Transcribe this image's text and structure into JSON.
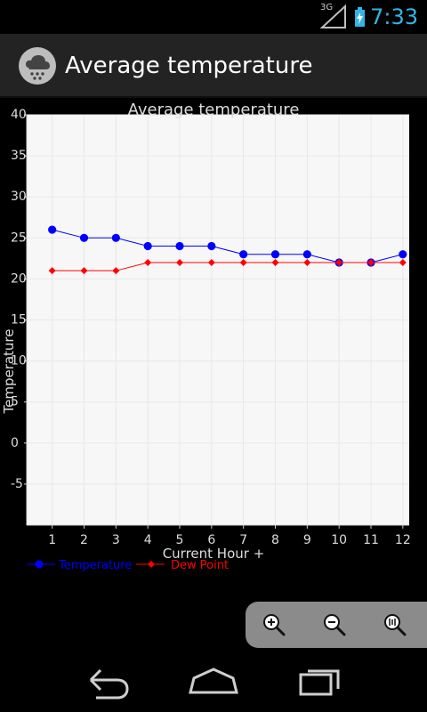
{
  "status_bar": {
    "network": "3G",
    "time": "7:33",
    "accent": "#33b5e5"
  },
  "header": {
    "title": "Average temperature",
    "icon": "weather-cloud-icon",
    "background": "#232323"
  },
  "chart_data": {
    "type": "line",
    "title": "Average temperature",
    "xlabel": "Current Hour +",
    "ylabel": "Temperature",
    "x": [
      1,
      2,
      3,
      4,
      5,
      6,
      7,
      8,
      9,
      10,
      11,
      12
    ],
    "x_tick_labels": [
      "1",
      "2",
      "3",
      "4",
      "5",
      "6",
      "7",
      "8",
      "9",
      "10",
      "11",
      "12"
    ],
    "xlim": [
      0.2,
      12.2
    ],
    "ylim": [
      -10,
      40
    ],
    "y_ticks": [
      40,
      35,
      30,
      25,
      20,
      15,
      10,
      5,
      0,
      -5
    ],
    "y_tick_labels": [
      "40",
      "35",
      "30",
      "25",
      "20",
      "15",
      "10",
      "5",
      "0",
      "-5"
    ],
    "grid": true,
    "legend_position": "bottom-left",
    "series": [
      {
        "name": "Temperature",
        "color": "#0000ff",
        "marker": "circle",
        "values": [
          26,
          25,
          25,
          24,
          24,
          24,
          23,
          23,
          23,
          22,
          22,
          23
        ]
      },
      {
        "name": "Dew Point",
        "color": "#ff0000",
        "marker": "diamond",
        "values": [
          21,
          21,
          21,
          22,
          22,
          22,
          22,
          22,
          22,
          22,
          22,
          22
        ]
      }
    ]
  },
  "zoom_controls": {
    "zoom_in_icon": "zoom-in-icon",
    "zoom_out_icon": "zoom-out-icon",
    "reset_zoom_icon": "reset-zoom-icon",
    "background": "#8b8b8b"
  },
  "navigation": {
    "back_icon": "back-icon",
    "home_icon": "home-icon",
    "recent_apps_icon": "recent-apps-icon"
  }
}
